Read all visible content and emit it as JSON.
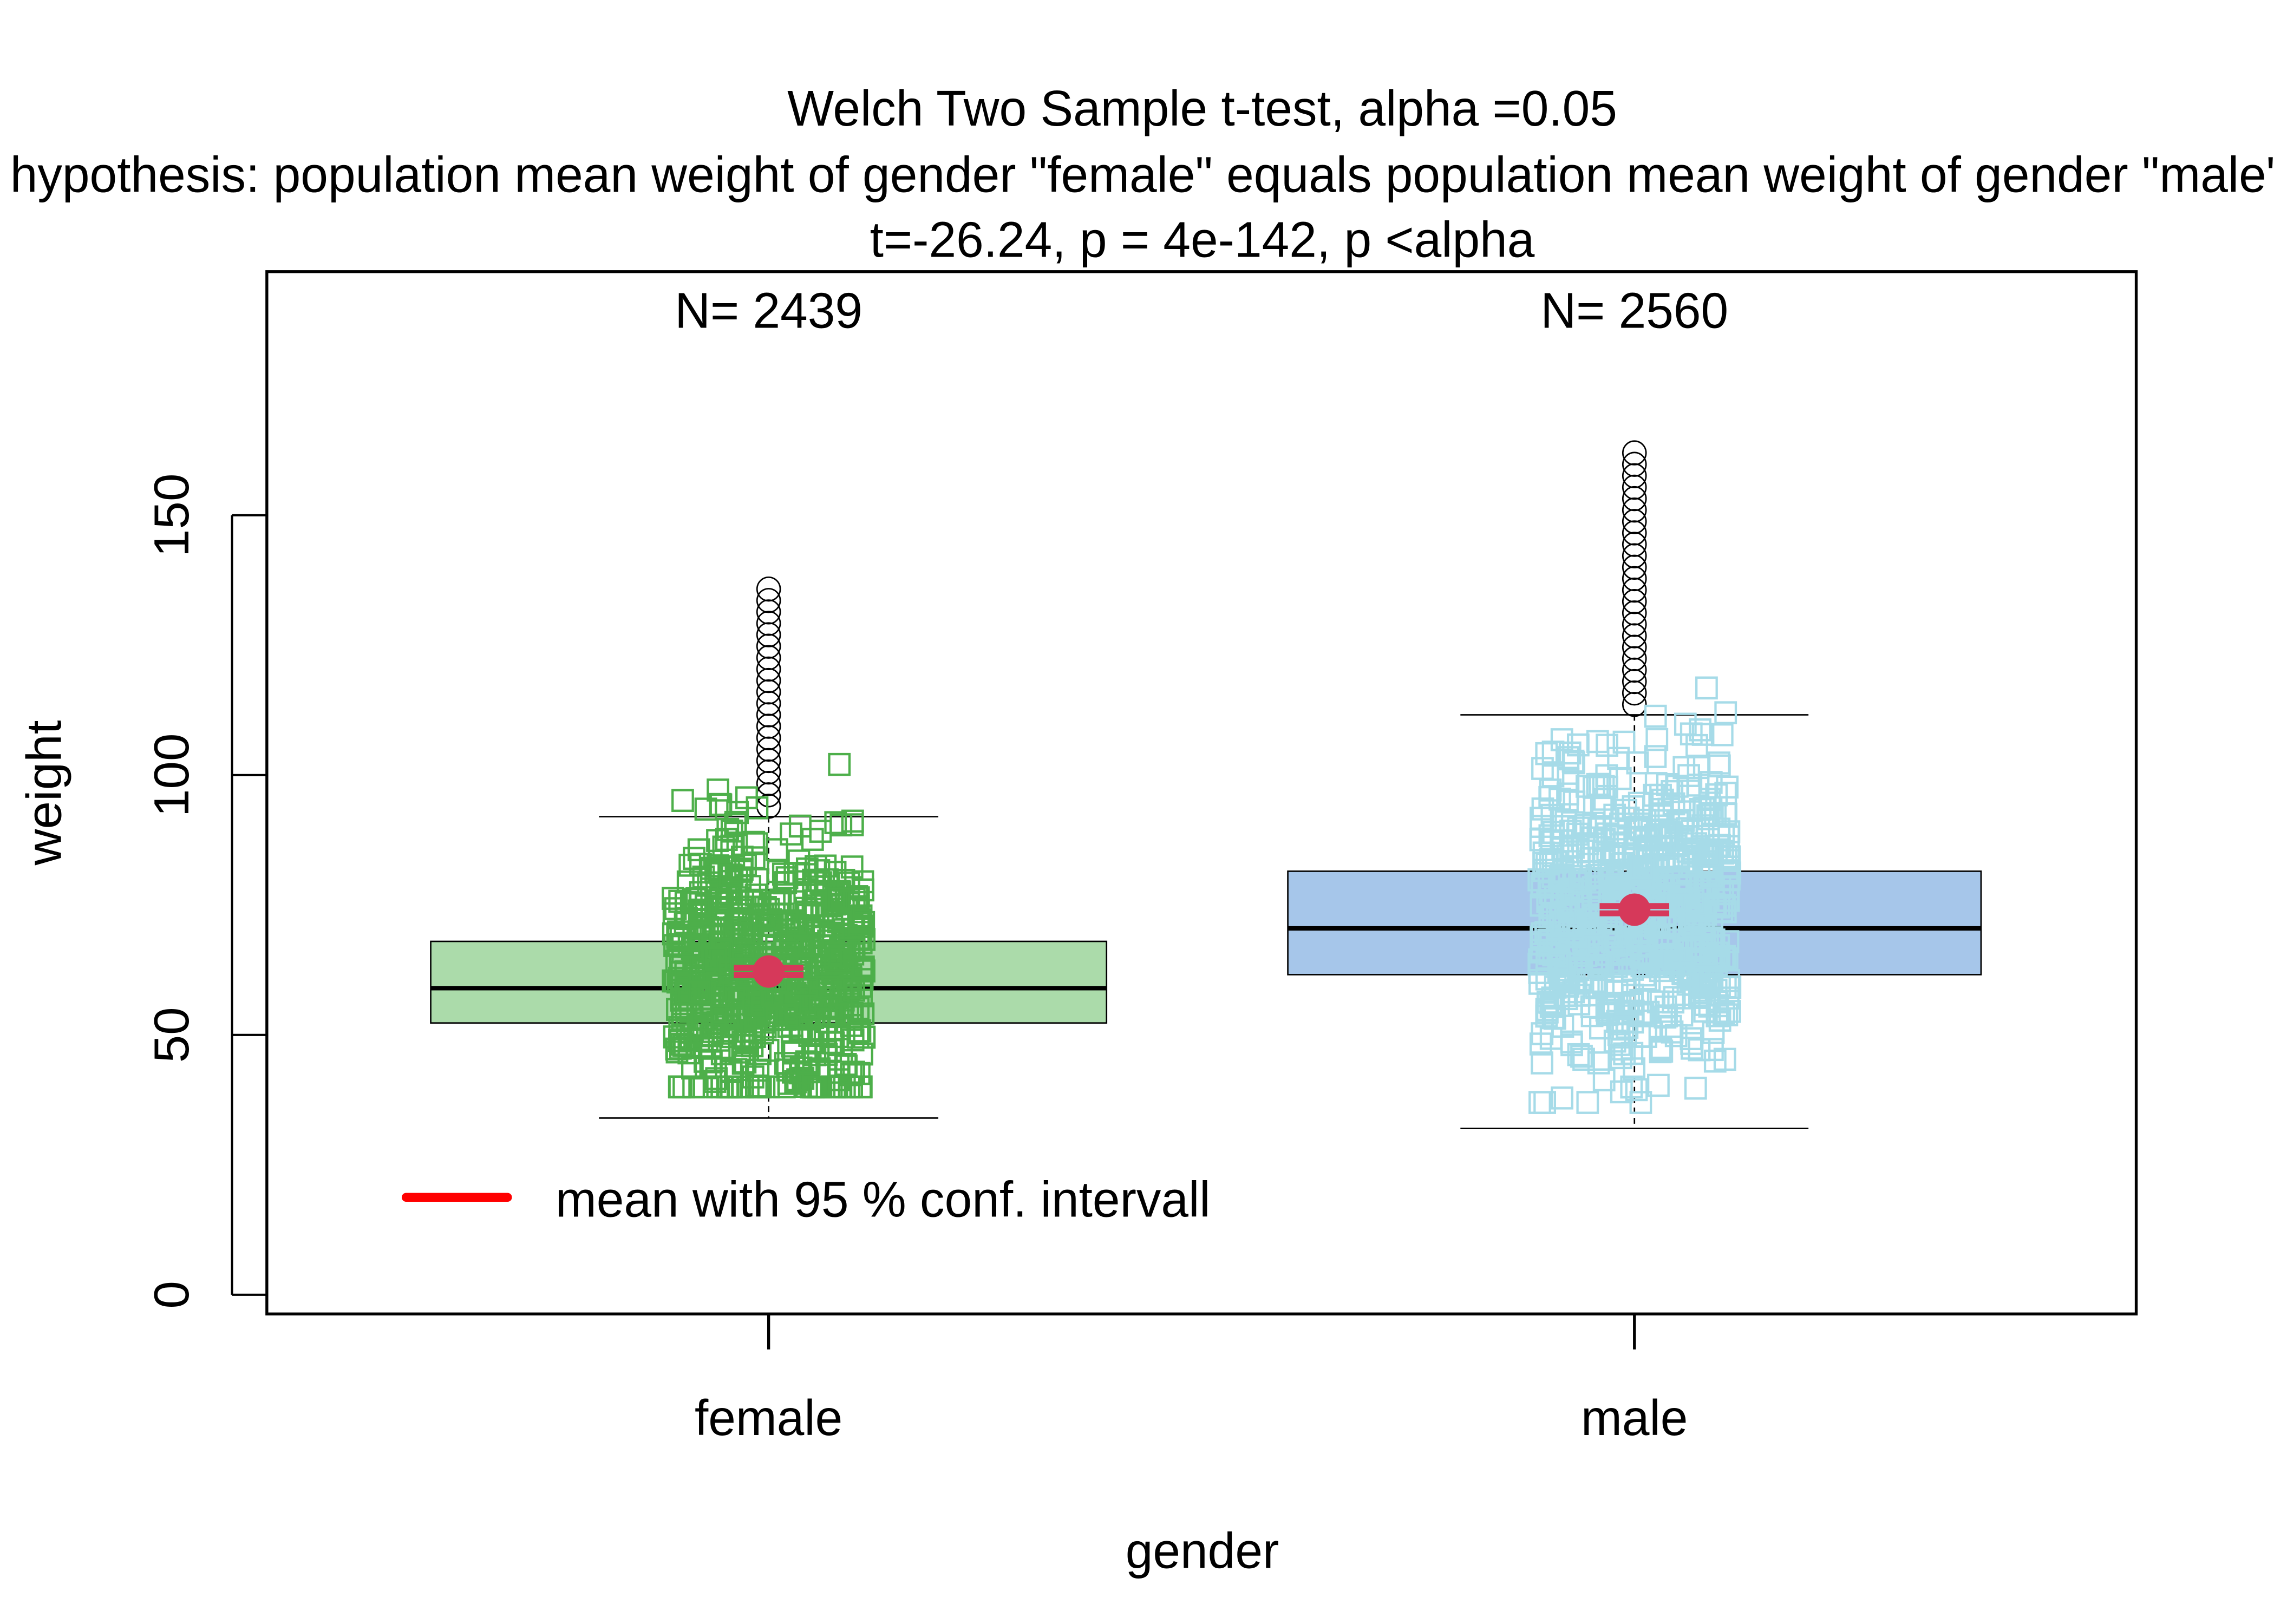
{
  "chart_data": {
    "type": "boxplot",
    "title": "Welch Two Sample t-test, alpha =0.05",
    "subtitle": "hypothesis: population mean weight of gender \"female\" equals population mean weight of gender \"male\"",
    "result": "t=-26.24, p = 4e-142, p <alpha",
    "xlabel": "gender",
    "ylabel": "weight",
    "ylim": [
      0,
      190
    ],
    "yticks": [
      "0",
      "50",
      "100",
      "150"
    ],
    "categories": [
      "female",
      "male"
    ],
    "n_labels": [
      "N= 2439",
      "N= 2560"
    ],
    "groups": [
      {
        "name": "female",
        "n": 2439,
        "whisker_low": 34,
        "q1": 52.3,
        "median": 59,
        "q3": 68,
        "whisker_high": 92,
        "mean": 62.2,
        "ci": [
          61.5,
          62.9
        ],
        "point_range": [
          34,
          136
        ],
        "box_color": "#abdbaa",
        "point_color": "#4daf4a"
      },
      {
        "name": "male",
        "n": 2560,
        "whisker_low": 32,
        "q1": 61.6,
        "median": 70.5,
        "q3": 81.5,
        "whisker_high": 111.6,
        "mean": 74.1,
        "ci": [
          73.4,
          74.8
        ],
        "point_range": [
          31,
          163
        ],
        "box_color": "#a6c6ea",
        "point_color": "#a6dbe8"
      }
    ],
    "mean_color": "#d6395a",
    "legend": {
      "label": "mean with 95 % conf. intervall",
      "color": "#ff0000",
      "placement": "bottom-left"
    }
  }
}
